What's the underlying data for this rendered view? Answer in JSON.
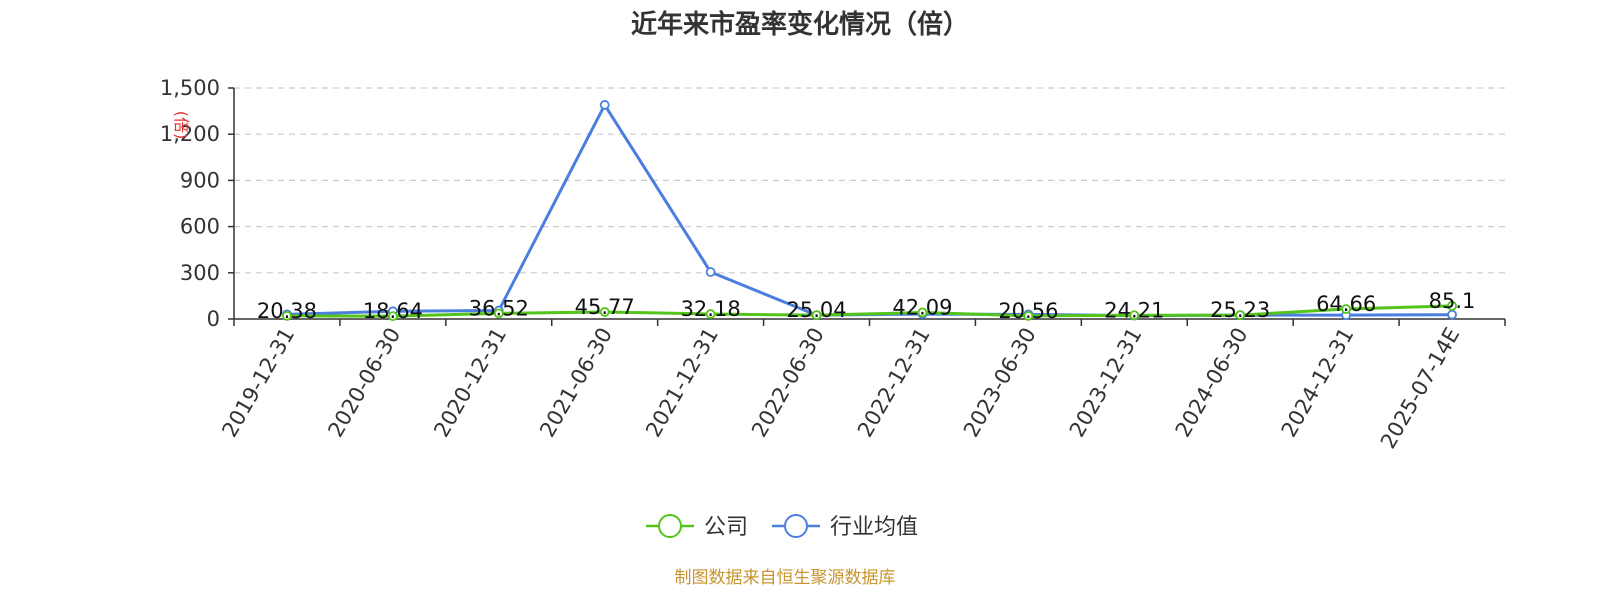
{
  "chart_data": {
    "type": "line",
    "title": "近年来市盈率变化情况（倍）",
    "ylabel": "(倍)",
    "ylim": [
      0,
      1500
    ],
    "yticks": [
      "0",
      "300",
      "600",
      "900",
      "1,200",
      "1,500"
    ],
    "ytick_values": [
      0,
      300,
      600,
      900,
      1200,
      1500
    ],
    "grid": true,
    "legend_position": "bottom",
    "categories": [
      "2019-12-31",
      "2020-06-30",
      "2020-12-31",
      "2021-06-30",
      "2021-12-31",
      "2022-06-30",
      "2022-12-31",
      "2023-06-30",
      "2023-12-31",
      "2024-06-30",
      "2024-12-31",
      "2025-07-14E"
    ],
    "series": [
      {
        "name": "公司",
        "color": "#52c41a",
        "values": [
          20.38,
          18.64,
          36.52,
          45.77,
          32.18,
          25.04,
          42.09,
          20.56,
          24.21,
          25.23,
          64.66,
          85.1
        ],
        "labels": [
          "20.38",
          "18.64",
          "36.52",
          "45.77",
          "32.18",
          "25.04",
          "42.09",
          "20.56",
          "24.21",
          "25.23",
          "64.66",
          "85.1"
        ]
      },
      {
        "name": "行业均值",
        "color": "#4a7fe0",
        "values": [
          30,
          50,
          55,
          1390,
          305,
          25,
          32,
          30,
          22,
          25,
          25,
          28
        ]
      }
    ],
    "source": "制图数据来自恒生聚源数据库"
  },
  "colors": {
    "grid": "#cccccc",
    "axis": "#333333",
    "source_text": "#c8952e",
    "unit_text": "#e03030"
  }
}
